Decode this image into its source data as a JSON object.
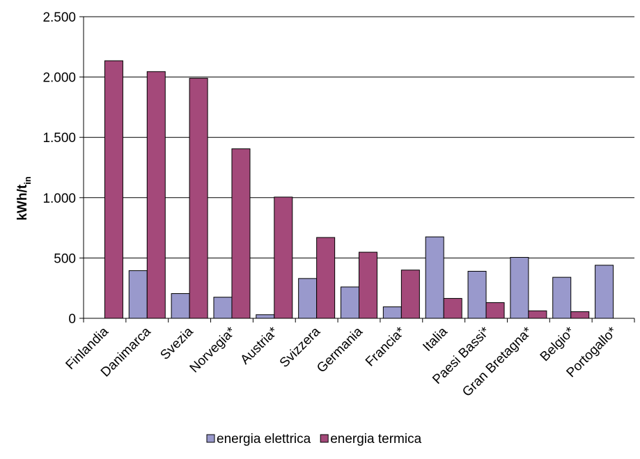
{
  "chart_data": {
    "type": "bar",
    "title": "",
    "xlabel": "",
    "ylabel": {
      "main": "kWh/t",
      "sub": "in"
    },
    "ylim": [
      0,
      2500
    ],
    "yticks": [
      {
        "value": 0,
        "label": "0"
      },
      {
        "value": 500,
        "label": "500"
      },
      {
        "value": 1000,
        "label": "1.000"
      },
      {
        "value": 1500,
        "label": "1.500"
      },
      {
        "value": 2000,
        "label": "2.000"
      },
      {
        "value": 2500,
        "label": "2.500"
      }
    ],
    "grid": true,
    "legend_position": "bottom",
    "categories": [
      "Finlandia",
      "Danimarca",
      "Svezia",
      "Norvegia*",
      "Austria*",
      "Svizzera",
      "Germania",
      "Francia*",
      "Italia",
      "Paesi Bassi*",
      "Gran Bretagna*",
      "Belgio*",
      "Portogallo*"
    ],
    "series": [
      {
        "name": "energia elettrica",
        "color": "#9999cc",
        "values": [
          0,
          395,
          205,
          175,
          30,
          330,
          260,
          95,
          675,
          390,
          505,
          340,
          440
        ]
      },
      {
        "name": "energia termica",
        "color": "#a4497a",
        "values": [
          2135,
          2045,
          1990,
          1405,
          1005,
          670,
          548,
          400,
          165,
          130,
          62,
          55,
          0
        ]
      }
    ]
  }
}
